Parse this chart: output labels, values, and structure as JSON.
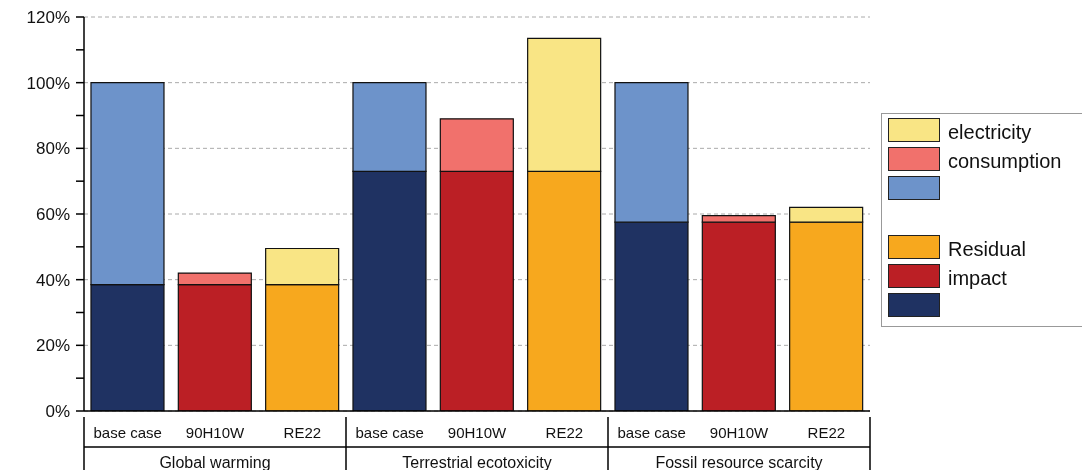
{
  "chart_data": {
    "type": "bar",
    "stacked": true,
    "categories": [
      "base case",
      "90H10W",
      "RE22",
      "base case",
      "90H10W",
      "RE22",
      "base case",
      "90H10W",
      "RE22"
    ],
    "series": [
      {
        "name": "Residual impact",
        "colors": [
          "#1f3262",
          "#bb1f25",
          "#f7a81e",
          "#1f3262",
          "#bb1f25",
          "#f7a81e",
          "#1f3262",
          "#bb1f25",
          "#f7a81e"
        ],
        "values": [
          38.5,
          38.5,
          38.5,
          73,
          73,
          73,
          57.5,
          57.5,
          57.5
        ]
      },
      {
        "name": "electricity consumption",
        "colors": [
          "#6d93ca",
          "#f1716c",
          "#f9e585",
          "#6d93ca",
          "#f1716c",
          "#f9e585",
          "#6d93ca",
          "#f1716c",
          "#f9e585"
        ],
        "values": [
          61.5,
          3.5,
          11,
          27,
          16,
          40.5,
          42.5,
          2,
          4.5
        ]
      }
    ],
    "ylim": [
      0,
      120
    ],
    "yticks": [
      {
        "value": 0,
        "label": "0%"
      },
      {
        "value": 10,
        "label": null
      },
      {
        "value": 20,
        "label": "20%"
      },
      {
        "value": 30,
        "label": null
      },
      {
        "value": 40,
        "label": "40%"
      },
      {
        "value": 50,
        "label": null
      },
      {
        "value": 60,
        "label": "60%"
      },
      {
        "value": 70,
        "label": null
      },
      {
        "value": 80,
        "label": "80%"
      },
      {
        "value": 90,
        "label": null
      },
      {
        "value": 100,
        "label": "100%"
      },
      {
        "value": 110,
        "label": null
      },
      {
        "value": 120,
        "label": "120%"
      }
    ],
    "grid": "y",
    "legend": "right",
    "annotations": [
      "Global warming",
      "Terrestrial ecotoxicity",
      "Fossil resource scarcity"
    ]
  }
}
